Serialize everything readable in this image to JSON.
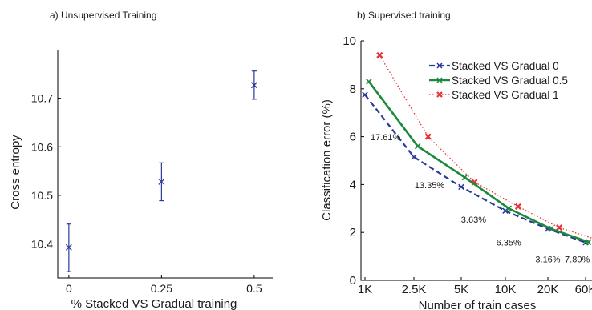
{
  "chart_data": [
    {
      "type": "scatter",
      "title": "a) Unsupervised Training",
      "xlabel": "% Stacked VS Gradual training",
      "ylabel": "Cross entropy",
      "x_tick_labels": [
        "0",
        "0.25",
        "0.5"
      ],
      "y_tick_labels": [
        "10.4",
        "10.5",
        "10.6",
        "10.7"
      ],
      "xlim": [
        -0.03,
        0.55
      ],
      "ylim": [
        10.33,
        10.8
      ],
      "grid": false,
      "marker_color": "#2b3a9a",
      "points": [
        {
          "x": 0,
          "y": 10.393,
          "err_low": 10.343,
          "err_high": 10.441
        },
        {
          "x": 0.25,
          "y": 10.528,
          "err_low": 10.489,
          "err_high": 10.567
        },
        {
          "x": 0.5,
          "y": 10.727,
          "err_low": 10.698,
          "err_high": 10.756
        }
      ]
    },
    {
      "type": "line",
      "title": "b)  Supervised training",
      "xlabel": "Number of train cases",
      "ylabel": "Classification error (%)",
      "categories": [
        "1K",
        "2.5K",
        "5K",
        "10K",
        "20K",
        "60K"
      ],
      "y_tick_labels": [
        "0",
        "2",
        "4",
        "6",
        "8",
        "10"
      ],
      "ylim": [
        0,
        10
      ],
      "grid": false,
      "legend_position": "top-right",
      "series": [
        {
          "name": "Stacked VS Gradual  0",
          "color": "#2b3a9a",
          "style": "dashed",
          "marker": "x",
          "x": [
            0,
            1,
            2,
            3,
            4,
            5
          ],
          "values": [
            7.75,
            5.15,
            3.9,
            2.9,
            2.15,
            1.58
          ]
        },
        {
          "name": "Stacked VS Gradual  0.5",
          "color": "#1a8a3a",
          "style": "solid",
          "marker": "x",
          "x": [
            0.08,
            1.08,
            2.08,
            3.08,
            4.08,
            5.08
          ],
          "values": [
            8.3,
            5.6,
            4.3,
            3.0,
            2.15,
            1.6
          ]
        },
        {
          "name": "Stacked VS Gradual  1",
          "color": "#e8323a",
          "style": "dotted",
          "marker": "x",
          "x": [
            0.3,
            1.3,
            2.3,
            3.3,
            4.3,
            5.3
          ],
          "values": [
            9.4,
            6.0,
            4.1,
            3.08,
            2.2,
            1.7
          ]
        }
      ],
      "annotations": [
        {
          "text": "17.61%",
          "x": 0.42,
          "y": 5.85
        },
        {
          "text": "13.35%",
          "x": 1.33,
          "y": 3.85
        },
        {
          "text": "3.63%",
          "x": 2.28,
          "y": 2.4
        },
        {
          "text": "6.35%",
          "x": 3.08,
          "y": 1.45
        },
        {
          "text": "3.16%",
          "x": 4.0,
          "y": 0.75
        },
        {
          "text": "7.80%",
          "x": 4.78,
          "y": 0.75
        }
      ]
    }
  ]
}
